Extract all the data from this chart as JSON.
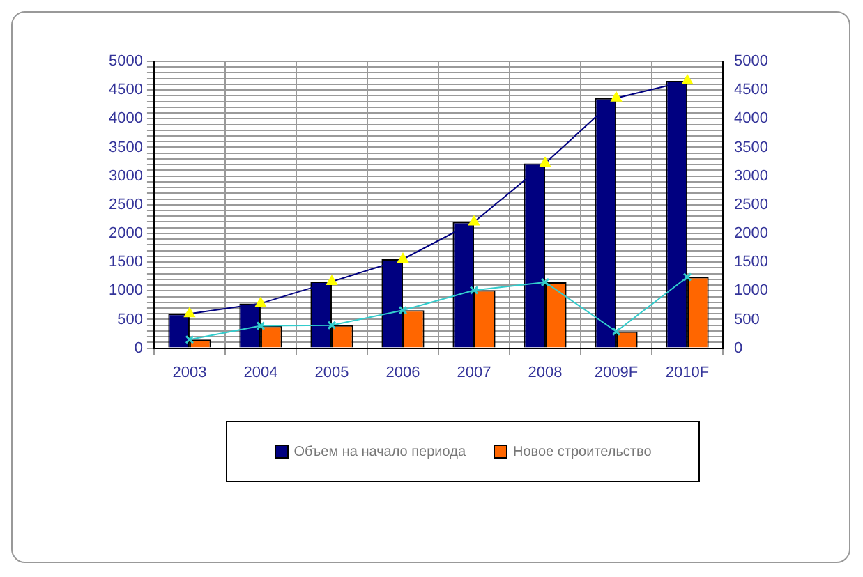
{
  "chart_data": {
    "type": "bar",
    "categories": [
      "2003",
      "2004",
      "2005",
      "2006",
      "2007",
      "2008",
      "2009F",
      "2010F"
    ],
    "series": [
      {
        "name": "Объем на начало периода",
        "color": "#000080",
        "values": [
          600,
          780,
          1160,
          1550,
          2200,
          3220,
          4360,
          4660
        ]
      },
      {
        "name": "Новое строительство",
        "color": "#ff6600",
        "values": [
          150,
          390,
          400,
          660,
          1010,
          1150,
          290,
          1240
        ]
      },
      {
        "type": "line",
        "color": "#000080",
        "marker": "triangle",
        "values": [
          600,
          780,
          1160,
          1550,
          2200,
          3220,
          4360,
          4660
        ]
      },
      {
        "type": "line",
        "color": "#33cccc",
        "marker": "cross",
        "values": [
          150,
          390,
          400,
          660,
          1010,
          1150,
          290,
          1240
        ]
      }
    ],
    "ylim": [
      0,
      5000
    ],
    "yticks": [
      0,
      {
        "value": 100,
        "label": null
      },
      {
        "value": 200,
        "label": null
      },
      {
        "value": 300,
        "label": null
      },
      {
        "value": 400,
        "label": null
      },
      500,
      {
        "value": 600,
        "label": null
      },
      {
        "value": 700,
        "label": null
      },
      {
        "value": 800,
        "label": null
      },
      {
        "value": 900,
        "label": null
      },
      1000,
      {
        "value": 1100,
        "label": null
      },
      {
        "value": 1200,
        "label": null
      },
      {
        "value": 1300,
        "label": null
      },
      {
        "value": 1400,
        "label": null
      },
      1500,
      {
        "value": 1600,
        "label": null
      },
      {
        "value": 1700,
        "label": null
      },
      {
        "value": 1800,
        "label": null
      },
      {
        "value": 1900,
        "label": null
      },
      2000,
      {
        "value": 2100,
        "label": null
      },
      {
        "value": 2200,
        "label": null
      },
      {
        "value": 2300,
        "label": null
      },
      {
        "value": 2400,
        "label": null
      },
      2500,
      {
        "value": 2600,
        "label": null
      },
      {
        "value": 2700,
        "label": null
      },
      {
        "value": 2800,
        "label": null
      },
      {
        "value": 2900,
        "label": null
      },
      3000,
      {
        "value": 3100,
        "label": null
      },
      {
        "value": 3200,
        "label": null
      },
      {
        "value": 3300,
        "label": null
      },
      {
        "value": 3400,
        "label": null
      },
      3500,
      {
        "value": 3600,
        "label": null
      },
      {
        "value": 3700,
        "label": null
      },
      {
        "value": 3800,
        "label": null
      },
      {
        "value": 3900,
        "label": null
      },
      4000,
      {
        "value": 4100,
        "label": null
      },
      {
        "value": 4200,
        "label": null
      },
      {
        "value": 4300,
        "label": null
      },
      {
        "value": 4400,
        "label": null
      },
      4500,
      {
        "value": 4600,
        "label": null
      },
      {
        "value": 4700,
        "label": null
      },
      {
        "value": 4800,
        "label": null
      },
      {
        "value": 4900,
        "label": null
      },
      5000
    ],
    "y2lim": [
      0,
      5000
    ],
    "y2ticks": [
      0,
      500,
      1000,
      1500,
      2000,
      2500,
      3000,
      3500,
      4000,
      4500,
      5000
    ],
    "grid": true,
    "legend": "bottom"
  }
}
